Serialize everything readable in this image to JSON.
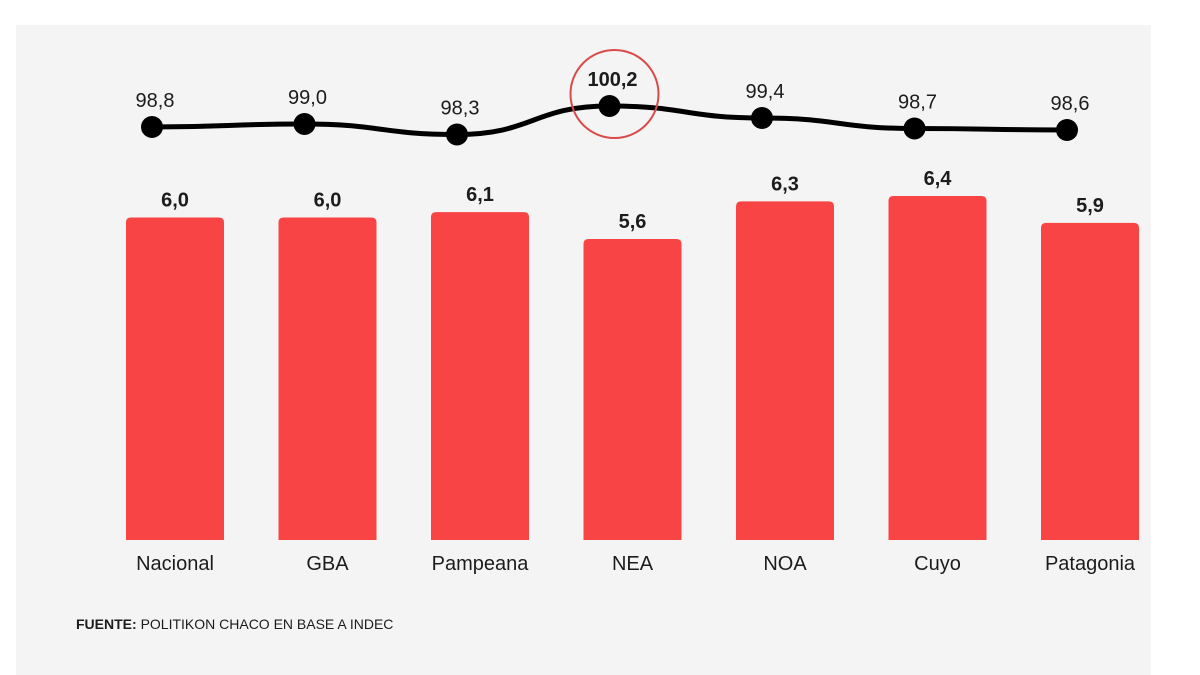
{
  "chart_data": {
    "type": "bar",
    "categories": [
      "Nacional",
      "GBA",
      "Pampeana",
      "NEA",
      "NOA",
      "Cuyo",
      "Patagonia"
    ],
    "series": [
      {
        "type": "bar",
        "values": [
          6.0,
          6.0,
          6.1,
          5.6,
          6.3,
          6.4,
          5.9
        ],
        "value_labels": [
          "6,0",
          "6,0",
          "6,1",
          "5,6",
          "6,3",
          "6,4",
          "5,9"
        ]
      },
      {
        "type": "line",
        "values": [
          98.8,
          99.0,
          98.3,
          100.2,
          99.4,
          98.7,
          98.6
        ],
        "value_labels": [
          "98,8",
          "99,0",
          "98,3",
          "100,2",
          "99,4",
          "98,7",
          "98,6"
        ]
      }
    ],
    "highlighted_point": "NEA",
    "colors": {
      "bar": "#f84444",
      "line": "#000000",
      "highlight_circle": "#d94a4a",
      "background": "#f4f4f4"
    },
    "grid": false,
    "legend": "none"
  },
  "source": {
    "label": "FUENTE:",
    "text": "POLITIKON CHACO EN BASE A INDEC"
  }
}
